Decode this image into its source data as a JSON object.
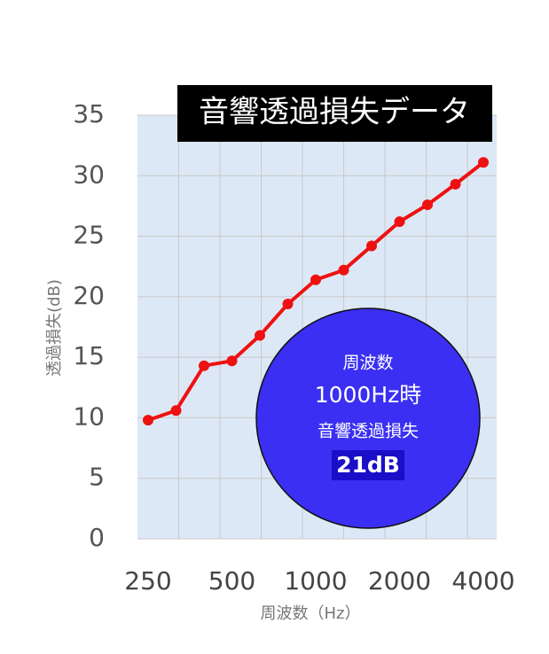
{
  "chart_data": {
    "type": "line",
    "title": "音響透過損失データ",
    "x_label": "周波数（Hz）",
    "y_label": "透過損失(dB)",
    "categories": [
      "250",
      null,
      null,
      "500",
      null,
      null,
      "1000",
      null,
      null,
      "2000",
      null,
      null,
      "4000"
    ],
    "series": [
      {
        "name": "音響透過損失",
        "color": "#ee1111",
        "values": [
          9.8,
          10.6,
          14.3,
          14.7,
          16.8,
          19.4,
          21.4,
          22.2,
          24.2,
          26.2,
          27.6,
          29.3,
          31.1
        ]
      }
    ],
    "ylim": [
      0,
      35
    ],
    "yticks": [
      0,
      5,
      10,
      15,
      20,
      25,
      30,
      35
    ],
    "grid": true,
    "annotation": [
      "周波数",
      "1000Hz時",
      "音響透過損失",
      "21dB"
    ]
  }
}
